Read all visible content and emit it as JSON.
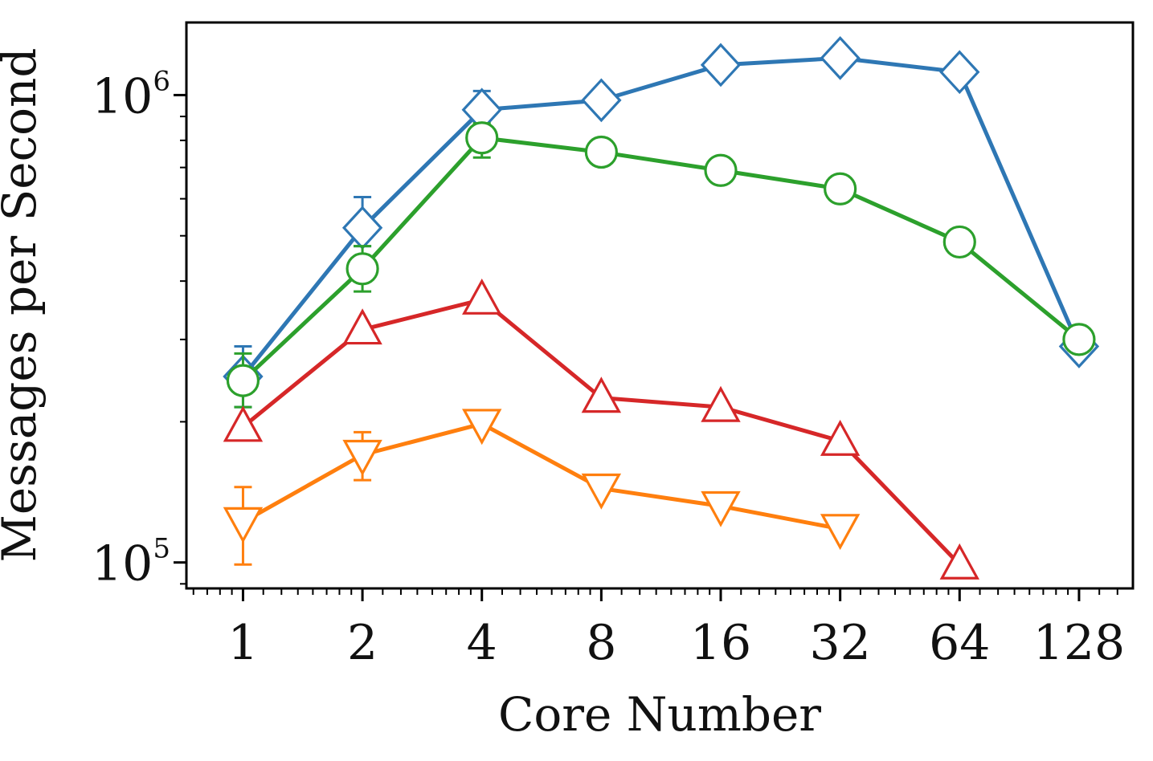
{
  "chart_data": {
    "type": "line",
    "xlabel": "Core Number",
    "ylabel": "Messages per Second",
    "x_scale": "log2",
    "y_scale": "log10",
    "xlim": [
      0.72,
      175
    ],
    "ylim": [
      88000,
      1430000
    ],
    "x_ticks": [
      1,
      2,
      4,
      8,
      16,
      32,
      64,
      128
    ],
    "x_tick_labels": [
      "1",
      "2",
      "4",
      "8",
      "16",
      "32",
      "64",
      "128"
    ],
    "y_ticks": [
      {
        "value": 100000,
        "base": "10",
        "exp": "5"
      },
      {
        "value": 1000000,
        "base": "10",
        "exp": "6"
      }
    ],
    "grid": false,
    "series": [
      {
        "name": "blue",
        "color": "#2E77B4",
        "marker": "diamond",
        "x": [
          1,
          2,
          4,
          8,
          16,
          32,
          64,
          128
        ],
        "values": [
          250000,
          520000,
          930000,
          975000,
          1160000,
          1200000,
          1120000,
          290000
        ],
        "errors": [
          [
            1,
            290000.0,
            215000.0
          ],
          [
            2,
            605000.0,
            475000.0
          ],
          [
            4,
            1020000.0,
            880000.0
          ]
        ]
      },
      {
        "name": "green",
        "color": "#2CA02C",
        "marker": "circle",
        "x": [
          1,
          2,
          4,
          8,
          16,
          32,
          64,
          128
        ],
        "values": [
          245000,
          425000,
          810000,
          755000,
          690000,
          630000,
          485000,
          300000
        ],
        "errors": [
          [
            1,
            280000.0,
            215000.0
          ],
          [
            2,
            475000.0,
            380000.0
          ],
          [
            4,
            870000.0,
            735000.0
          ]
        ]
      },
      {
        "name": "red",
        "color": "#D62728",
        "marker": "triangle-up",
        "x": [
          1,
          2,
          4,
          8,
          16,
          32,
          64
        ],
        "values": [
          195000,
          315000,
          365000,
          225000,
          215000,
          182000,
          99000
        ]
      },
      {
        "name": "orange",
        "color": "#FF7F0E",
        "marker": "triangle-down",
        "x": [
          1,
          2,
          4,
          8,
          16,
          32
        ],
        "values": [
          122000,
          170000,
          198000,
          144000,
          132000,
          118000
        ],
        "errors": [
          [
            1,
            145000.0,
            99000.0
          ],
          [
            2,
            190000.0,
            150000.0
          ]
        ]
      }
    ]
  }
}
